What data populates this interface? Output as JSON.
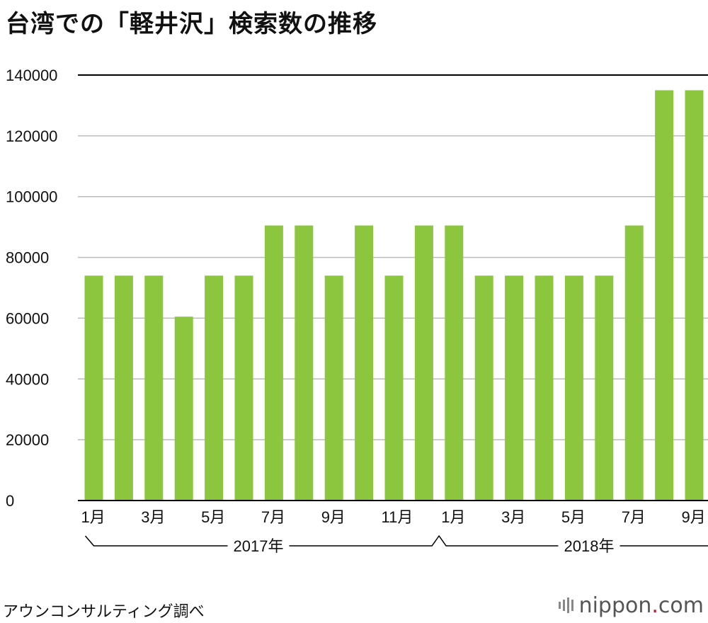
{
  "title": "台湾での「軽井沢」検索数の推移",
  "source": "アウンコンサルティング調べ",
  "logo": {
    "name": "nippon",
    "dot": ".",
    "tld": "com"
  },
  "colors": {
    "bar": "#8cc63f",
    "grid": "#bbbbbb",
    "axis": "#000000",
    "text": "#111111",
    "logo_dot": "#c8102e"
  },
  "chart_data": {
    "type": "bar",
    "categories": [
      "2017-01",
      "2017-02",
      "2017-03",
      "2017-04",
      "2017-05",
      "2017-06",
      "2017-07",
      "2017-08",
      "2017-09",
      "2017-10",
      "2017-11",
      "2017-12",
      "2018-01",
      "2018-02",
      "2018-03",
      "2018-04",
      "2018-05",
      "2018-06",
      "2018-07",
      "2018-08",
      "2018-09"
    ],
    "tick_labels": [
      "1月",
      "",
      "3月",
      "",
      "5月",
      "",
      "7月",
      "",
      "9月",
      "",
      "11月",
      "",
      "1月",
      "",
      "3月",
      "",
      "5月",
      "",
      "7月",
      "",
      "9月"
    ],
    "values": [
      74000,
      74000,
      74000,
      60500,
      74000,
      74000,
      90500,
      90500,
      74000,
      90500,
      74000,
      90500,
      90500,
      74000,
      74000,
      74000,
      74000,
      74000,
      90500,
      135000,
      135000
    ],
    "groups": [
      {
        "label": "2017年",
        "start": 0,
        "end": 11
      },
      {
        "label": "2018年",
        "start": 12,
        "end": 20
      }
    ],
    "yticks": [
      "0",
      "20000",
      "40000",
      "60000",
      "80000",
      "100000",
      "120000",
      "140000"
    ],
    "ylim": [
      0,
      140000
    ],
    "grid": true,
    "xlabel": "",
    "ylabel": ""
  }
}
